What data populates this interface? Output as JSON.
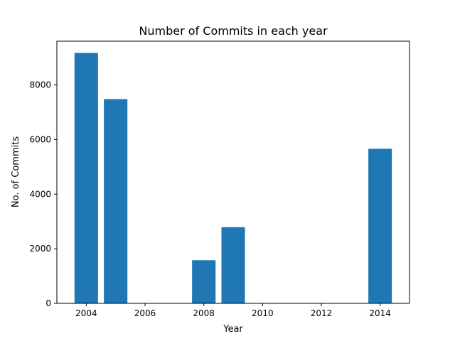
{
  "chart_data": {
    "type": "bar",
    "title": "Number of Commits in each year",
    "xlabel": "Year",
    "ylabel": "No. of Commits",
    "x": [
      2004,
      2005,
      2008,
      2009,
      2014
    ],
    "values": [
      9170,
      7480,
      1580,
      2790,
      5660
    ],
    "xlim": [
      2003,
      2015
    ],
    "ylim": [
      0,
      9600
    ],
    "xticks": [
      2004,
      2006,
      2008,
      2010,
      2012,
      2014
    ],
    "yticks": [
      0,
      2000,
      4000,
      6000,
      8000
    ],
    "grid": false,
    "legend": "none",
    "bar_color": "#1f77b4"
  }
}
